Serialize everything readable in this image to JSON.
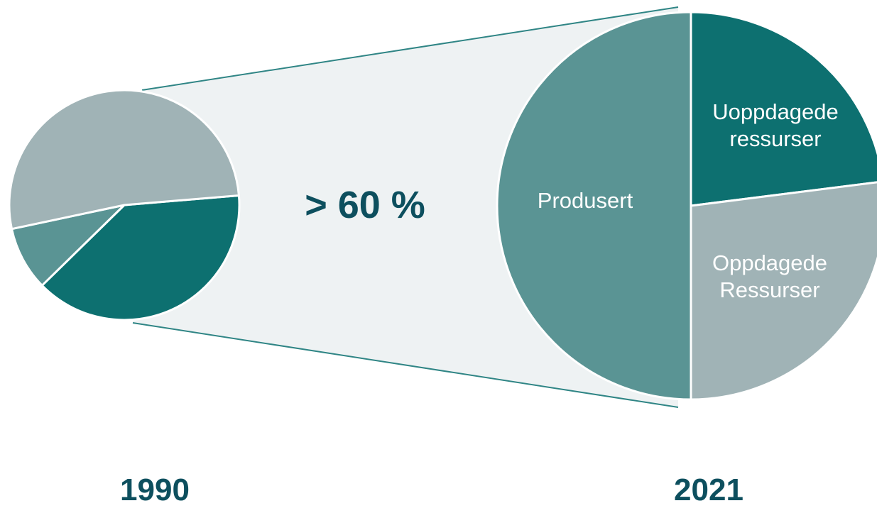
{
  "chart_data": [
    {
      "type": "pie",
      "year": "1990",
      "slices": [
        {
          "name": "",
          "value": 39,
          "color": "#0d7070"
        },
        {
          "name": "",
          "value": 9,
          "color": "#5a9494"
        },
        {
          "name": "",
          "value": 52,
          "color": "#a0b3b6"
        }
      ]
    },
    {
      "type": "pie",
      "year": "2021",
      "slices": [
        {
          "name": "Produsert",
          "value": 50,
          "color": "#5a9494"
        },
        {
          "name": "Uoppdagede ressurser",
          "lines": [
            "Uoppdagede",
            "ressurser"
          ],
          "value": 23,
          "color": "#0d7070"
        },
        {
          "name": "Oppdagede Ressurser",
          "lines": [
            "Oppdagede",
            "Ressurser"
          ],
          "value": 27,
          "color": "#a0b3b6"
        }
      ]
    }
  ],
  "growth_label": "> 60 %",
  "colors": {
    "connector_fill": "#eef2f3",
    "connector_line": "#2f8585",
    "slice_border": "#ffffff",
    "text_dark": "#0d4f5e"
  }
}
